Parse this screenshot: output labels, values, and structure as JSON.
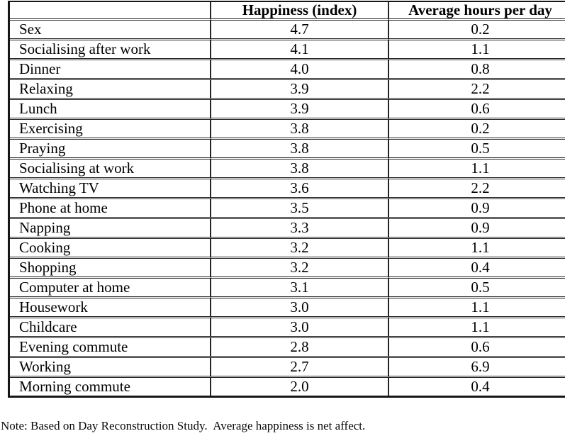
{
  "table": {
    "columns": [
      "",
      "Happiness (index)",
      "Average hours per day"
    ],
    "rows": [
      {
        "activity": "Sex",
        "happiness": "4.7",
        "hours": "0.2"
      },
      {
        "activity": "Socialising after work",
        "happiness": "4.1",
        "hours": "1.1"
      },
      {
        "activity": "Dinner",
        "happiness": "4.0",
        "hours": "0.8"
      },
      {
        "activity": "Relaxing",
        "happiness": "3.9",
        "hours": "2.2"
      },
      {
        "activity": "Lunch",
        "happiness": "3.9",
        "hours": "0.6"
      },
      {
        "activity": "Exercising",
        "happiness": "3.8",
        "hours": "0.2"
      },
      {
        "activity": "Praying",
        "happiness": "3.8",
        "hours": "0.5"
      },
      {
        "activity": "Socialising at work",
        "happiness": "3.8",
        "hours": "1.1"
      },
      {
        "activity": "Watching TV",
        "happiness": "3.6",
        "hours": "2.2"
      },
      {
        "activity": "Phone at home",
        "happiness": "3.5",
        "hours": "0.9"
      },
      {
        "activity": "Napping",
        "happiness": "3.3",
        "hours": "0.9"
      },
      {
        "activity": "Cooking",
        "happiness": "3.2",
        "hours": "1.1"
      },
      {
        "activity": "Shopping",
        "happiness": "3.2",
        "hours": "0.4"
      },
      {
        "activity": "Computer at home",
        "happiness": "3.1",
        "hours": "0.5"
      },
      {
        "activity": "Housework",
        "happiness": "3.0",
        "hours": "1.1"
      },
      {
        "activity": "Childcare",
        "happiness": "3.0",
        "hours": "1.1"
      },
      {
        "activity": "Evening commute",
        "happiness": "2.8",
        "hours": "0.6"
      },
      {
        "activity": "Working",
        "happiness": "2.7",
        "hours": "6.9"
      },
      {
        "activity": "Morning commute",
        "happiness": "2.0",
        "hours": "0.4"
      }
    ]
  },
  "note": "Note: Based on Day Reconstruction Study.  Average happiness is net affect.",
  "colors": {
    "background": "#ffffff",
    "text": "#000000",
    "border": "#242424"
  }
}
